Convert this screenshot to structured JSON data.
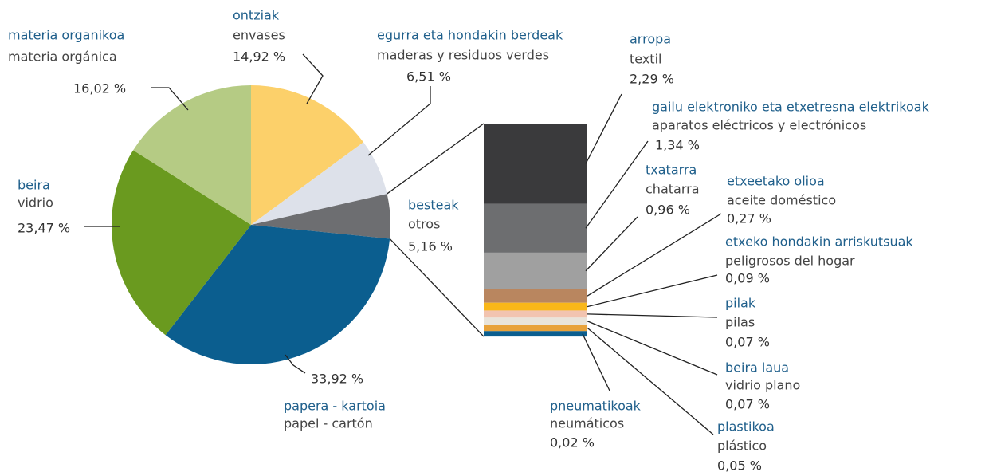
{
  "chart_data": [
    {
      "type": "pie",
      "categories": [
        "ontziak",
        "egurra eta hondakin berdeak",
        "besteak",
        "papera - kartoia",
        "beira",
        "materia organikoa"
      ],
      "subcategories": [
        "envases",
        "maderas y residuos verdes",
        "otros",
        "papel - cartón",
        "vidrio",
        "materia orgánica"
      ],
      "values": [
        14.92,
        6.51,
        5.16,
        33.92,
        23.47,
        16.02
      ],
      "value_labels": [
        "14,92 %",
        "6,51 %",
        "5,16 %",
        "33,92 %",
        "23,47 %",
        "16,02 %"
      ],
      "colors": [
        "#fcd06a",
        "#dde1ea",
        "#6d6e71",
        "#0b5e8f",
        "#6a9a1f",
        "#b5cb84"
      ]
    },
    {
      "type": "bar",
      "categories": [
        "arropa",
        "gailu elektroniko eta etxetresna elektrikoak",
        "txatarra",
        "etxeetako olioa",
        "etxeko hondakin arriskutsuak",
        "pilak",
        "beira laua",
        "plastikoa",
        "pneumatikoak"
      ],
      "subcategories": [
        "textil",
        "aparatos eléctricos y electrónicos",
        "chatarra",
        "aceite doméstico",
        "peligrosos del hogar",
        "pilas",
        "vidrio plano",
        "plástico",
        "neumáticos"
      ],
      "values": [
        2.29,
        1.34,
        0.96,
        0.27,
        0.09,
        0.07,
        0.07,
        0.05,
        0.02
      ],
      "value_labels": [
        "2,29 %",
        "1,34 %",
        "0,96 %",
        "0,27 %",
        "0,09 %",
        "0,07 %",
        "0,07 %",
        "0,05 %",
        "0,02 %"
      ],
      "colors": [
        "#3a3a3c",
        "#6d6e70",
        "#a0a0a0",
        "#b9865f",
        "#f9b719",
        "#f2c4b0",
        "#e9e4da",
        "#e8a23a",
        "#0b5e8f"
      ]
    }
  ]
}
